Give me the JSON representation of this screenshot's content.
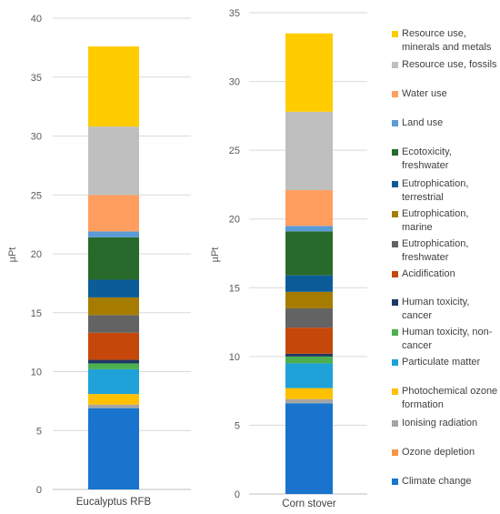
{
  "chart_data": [
    {
      "type": "bar",
      "stacked": true,
      "categories": [
        "Eucalyptus RFB"
      ],
      "ylabel": "µPt",
      "ylim": [
        0,
        40
      ],
      "yticks": [
        "0",
        "5",
        "10",
        "15",
        "20",
        "25",
        "30",
        "35",
        "40"
      ],
      "grid": true,
      "series": [
        {
          "name": "Climate change",
          "color": "#1874CD",
          "values": [
            6.9
          ]
        },
        {
          "name": "Ozone depletion",
          "color": "#F79646",
          "values": [
            0.0
          ]
        },
        {
          "name": "Ionising radiation",
          "color": "#A5A5A5",
          "values": [
            0.3
          ]
        },
        {
          "name": "Photochemical ozone formation",
          "color": "#FFC000",
          "values": [
            0.9
          ]
        },
        {
          "name": "Particulate matter",
          "color": "#1FA2D8",
          "values": [
            2.1
          ]
        },
        {
          "name": "Human toxicity, non-cancer",
          "color": "#4CAF50",
          "values": [
            0.5
          ]
        },
        {
          "name": "Human toxicity, cancer",
          "color": "#1F3864",
          "values": [
            0.3
          ]
        },
        {
          "name": "Acidification",
          "color": "#C5480A",
          "values": [
            2.3
          ]
        },
        {
          "name": "Eutrophication, freshwater",
          "color": "#636363",
          "values": [
            1.5
          ]
        },
        {
          "name": "Eutrophication, marine",
          "color": "#A67C00",
          "values": [
            1.5
          ]
        },
        {
          "name": "Eutrophication, terrestrial",
          "color": "#0B5C99",
          "values": [
            1.5
          ]
        },
        {
          "name": "Ecotoxicity, freshwater",
          "color": "#276A2B",
          "values": [
            3.6
          ]
        },
        {
          "name": "Land use",
          "color": "#5B9BD5",
          "values": [
            0.5
          ]
        },
        {
          "name": "Water use",
          "color": "#FF9E5E",
          "values": [
            3.1
          ]
        },
        {
          "name": "Resource use, fossils",
          "color": "#BFBFBF",
          "values": [
            5.8
          ]
        },
        {
          "name": "Resource use, minerals and metals",
          "color": "#FFCC00",
          "values": [
            6.8
          ]
        }
      ]
    },
    {
      "type": "bar",
      "stacked": true,
      "categories": [
        "Corn stover"
      ],
      "ylabel": "µPt",
      "ylim": [
        0,
        35
      ],
      "yticks": [
        "0",
        "5",
        "10",
        "15",
        "20",
        "25",
        "30",
        "35"
      ],
      "grid": true,
      "series": [
        {
          "name": "Climate change",
          "color": "#1874CD",
          "values": [
            6.6
          ]
        },
        {
          "name": "Ozone depletion",
          "color": "#F79646",
          "values": [
            0.0
          ]
        },
        {
          "name": "Ionising radiation",
          "color": "#A5A5A5",
          "values": [
            0.3
          ]
        },
        {
          "name": "Photochemical ozone formation",
          "color": "#FFC000",
          "values": [
            0.8
          ]
        },
        {
          "name": "Particulate matter",
          "color": "#1FA2D8",
          "values": [
            1.8
          ]
        },
        {
          "name": "Human toxicity, non-cancer",
          "color": "#4CAF50",
          "values": [
            0.5
          ]
        },
        {
          "name": "Human toxicity, cancer",
          "color": "#1F3864",
          "values": [
            0.2
          ]
        },
        {
          "name": "Acidification",
          "color": "#C5480A",
          "values": [
            1.9
          ]
        },
        {
          "name": "Eutrophication, freshwater",
          "color": "#636363",
          "values": [
            1.4
          ]
        },
        {
          "name": "Eutrophication, marine",
          "color": "#A67C00",
          "values": [
            1.2
          ]
        },
        {
          "name": "Eutrophication, terrestrial",
          "color": "#0B5C99",
          "values": [
            1.2
          ]
        },
        {
          "name": "Ecotoxicity, freshwater",
          "color": "#276A2B",
          "values": [
            3.2
          ]
        },
        {
          "name": "Land use",
          "color": "#5B9BD5",
          "values": [
            0.4
          ]
        },
        {
          "name": "Water use",
          "color": "#FF9E5E",
          "values": [
            2.6
          ]
        },
        {
          "name": "Resource use, fossils",
          "color": "#BFBFBF",
          "values": [
            5.7
          ]
        },
        {
          "name": "Resource use, minerals and metals",
          "color": "#FFCC00",
          "values": [
            5.7
          ]
        }
      ]
    }
  ],
  "legend": {
    "placement": "right",
    "items": [
      {
        "lines": [
          "Resource use,",
          "minerals and metals"
        ],
        "color": "#FFCC00"
      },
      {
        "lines": [
          "Resource use, fossils"
        ],
        "color": "#BFBFBF"
      },
      {
        "lines": [
          "Water use"
        ],
        "color": "#FF9E5E"
      },
      {
        "lines": [
          "Land use"
        ],
        "color": "#5B9BD5"
      },
      {
        "lines": [
          "Ecotoxicity,",
          "freshwater"
        ],
        "color": "#276A2B"
      },
      {
        "lines": [
          "Eutrophication,",
          "terrestrial"
        ],
        "color": "#0B5C99"
      },
      {
        "lines": [
          "Eutrophication,",
          "marine"
        ],
        "color": "#A67C00"
      },
      {
        "lines": [
          "Eutrophication,",
          "freshwater"
        ],
        "color": "#636363"
      },
      {
        "lines": [
          "Acidification"
        ],
        "color": "#C5480A"
      },
      {
        "lines": [
          "Human toxicity,",
          "cancer"
        ],
        "color": "#1F3864"
      },
      {
        "lines": [
          "Human toxicity, non-",
          "cancer"
        ],
        "color": "#4CAF50"
      },
      {
        "lines": [
          "Particulate matter"
        ],
        "color": "#1FA2D8"
      },
      {
        "lines": [
          "Photochemical ozone",
          "formation"
        ],
        "color": "#FFC000"
      },
      {
        "lines": [
          "Ionising radiation"
        ],
        "color": "#A5A5A5"
      },
      {
        "lines": [
          "Ozone depletion"
        ],
        "color": "#F79646"
      },
      {
        "lines": [
          "Climate change"
        ],
        "color": "#1874CD"
      }
    ]
  }
}
